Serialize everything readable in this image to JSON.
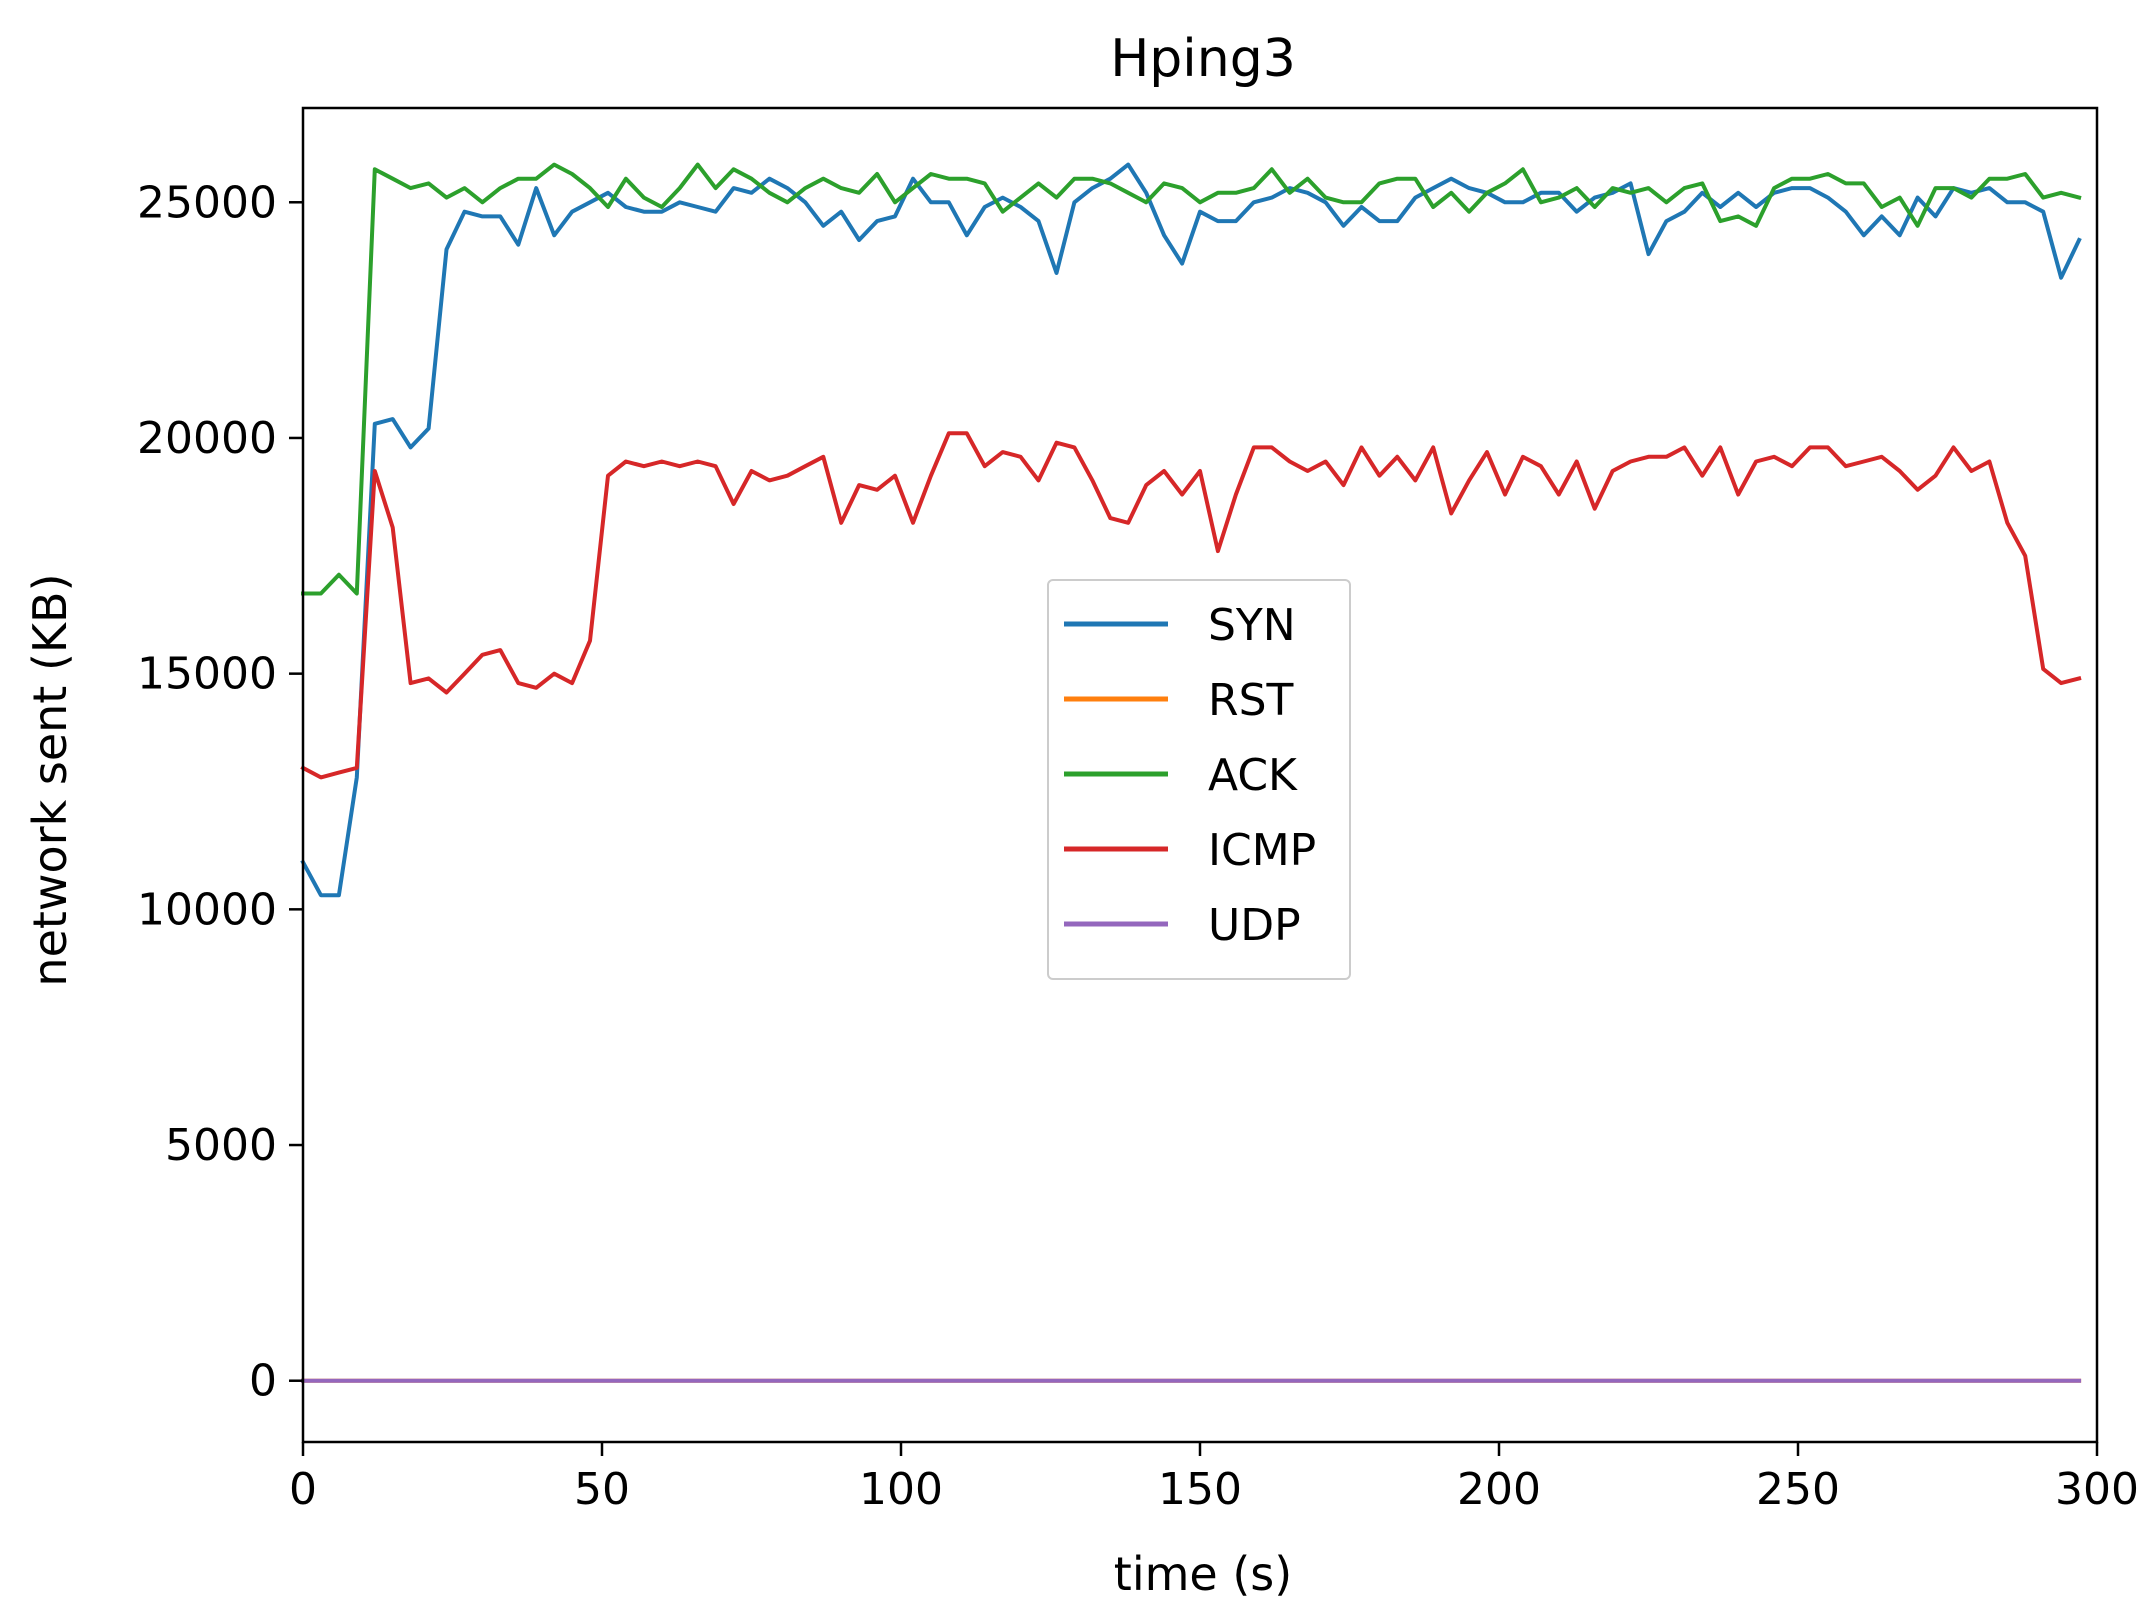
{
  "chart_data": {
    "type": "line",
    "title": "Hping3",
    "xlabel": "time (s)",
    "ylabel": "network sent (KB)",
    "xlim": [
      0,
      300
    ],
    "ylim": [
      -1300,
      27000
    ],
    "xticks": [
      0,
      50,
      100,
      150,
      200,
      250,
      300
    ],
    "yticks": [
      0,
      5000,
      10000,
      15000,
      20000,
      25000
    ],
    "grid": false,
    "legend_position": "center",
    "x": [
      0,
      3,
      6,
      9,
      12,
      15,
      18,
      21,
      24,
      27,
      30,
      33,
      36,
      39,
      42,
      45,
      48,
      51,
      54,
      57,
      60,
      63,
      66,
      69,
      72,
      75,
      78,
      81,
      84,
      87,
      90,
      93,
      96,
      99,
      102,
      105,
      108,
      111,
      114,
      117,
      120,
      123,
      126,
      129,
      132,
      135,
      138,
      141,
      144,
      147,
      150,
      153,
      156,
      159,
      162,
      165,
      168,
      171,
      174,
      177,
      180,
      183,
      186,
      189,
      192,
      195,
      198,
      201,
      204,
      207,
      210,
      213,
      216,
      219,
      222,
      225,
      228,
      231,
      234,
      237,
      240,
      243,
      246,
      249,
      252,
      255,
      258,
      261,
      264,
      267,
      270,
      273,
      276,
      279,
      282,
      285,
      288,
      291,
      294,
      297
    ],
    "series": [
      {
        "name": "SYN",
        "color": "#1f77b4",
        "values": [
          11000,
          10300,
          10300,
          12800,
          20300,
          20400,
          19800,
          20200,
          24000,
          24800,
          24700,
          24700,
          24100,
          25300,
          24300,
          24800,
          25000,
          25200,
          24900,
          24800,
          24800,
          25000,
          24900,
          24800,
          25300,
          25200,
          25500,
          25300,
          25000,
          24500,
          24800,
          24200,
          24600,
          24700,
          25500,
          25000,
          25000,
          24300,
          24900,
          25100,
          24900,
          24600,
          23500,
          25000,
          25300,
          25500,
          25800,
          25200,
          24300,
          23700,
          24800,
          24600,
          24600,
          25000,
          25100,
          25300,
          25200,
          25000,
          24500,
          24900,
          24600,
          24600,
          25100,
          25300,
          25500,
          25300,
          25200,
          25000,
          25000,
          25200,
          25200,
          24800,
          25100,
          25200,
          25400,
          23900,
          24600,
          24800,
          25200,
          24900,
          25200,
          24900,
          25200,
          25300,
          25300,
          25100,
          24800,
          24300,
          24700,
          24300,
          25100,
          24700,
          25300,
          25200,
          25300,
          25000,
          25000,
          24800,
          23400,
          24200
        ]
      },
      {
        "name": "RST",
        "color": "#ff7f0e",
        "values": [
          0,
          0,
          0,
          0,
          0,
          0,
          0,
          0,
          0,
          0,
          0,
          0,
          0,
          0,
          0,
          0,
          0,
          0,
          0,
          0,
          0,
          0,
          0,
          0,
          0,
          0,
          0,
          0,
          0,
          0,
          0,
          0,
          0,
          0,
          0,
          0,
          0,
          0,
          0,
          0,
          0,
          0,
          0,
          0,
          0,
          0,
          0,
          0,
          0,
          0,
          0,
          0,
          0,
          0,
          0,
          0,
          0,
          0,
          0,
          0,
          0,
          0,
          0,
          0,
          0,
          0,
          0,
          0,
          0,
          0,
          0,
          0,
          0,
          0,
          0,
          0,
          0,
          0,
          0,
          0,
          0,
          0,
          0,
          0,
          0,
          0,
          0,
          0,
          0,
          0,
          0,
          0,
          0,
          0,
          0,
          0,
          0,
          0,
          0,
          0
        ]
      },
      {
        "name": "ACK",
        "color": "#2ca02c",
        "values": [
          16700,
          16700,
          17100,
          16700,
          25700,
          25500,
          25300,
          25400,
          25100,
          25300,
          25000,
          25300,
          25500,
          25500,
          25800,
          25600,
          25300,
          24900,
          25500,
          25100,
          24900,
          25300,
          25800,
          25300,
          25700,
          25500,
          25200,
          25000,
          25300,
          25500,
          25300,
          25200,
          25600,
          25000,
          25300,
          25600,
          25500,
          25500,
          25400,
          24800,
          25100,
          25400,
          25100,
          25500,
          25500,
          25400,
          25200,
          25000,
          25400,
          25300,
          25000,
          25200,
          25200,
          25300,
          25700,
          25200,
          25500,
          25100,
          25000,
          25000,
          25400,
          25500,
          25500,
          24900,
          25200,
          24800,
          25200,
          25400,
          25700,
          25000,
          25100,
          25300,
          24900,
          25300,
          25200,
          25300,
          25000,
          25300,
          25400,
          24600,
          24700,
          24500,
          25300,
          25500,
          25500,
          25600,
          25400,
          25400,
          24900,
          25100,
          24500,
          25300,
          25300,
          25100,
          25500,
          25500,
          25600,
          25100,
          25200,
          25100
        ]
      },
      {
        "name": "ICMP",
        "color": "#d62728",
        "values": [
          13000,
          12800,
          12900,
          13000,
          19300,
          18100,
          14800,
          14900,
          14600,
          15000,
          15400,
          15500,
          14800,
          14700,
          15000,
          14800,
          15700,
          19200,
          19500,
          19400,
          19500,
          19400,
          19500,
          19400,
          18600,
          19300,
          19100,
          19200,
          19400,
          19600,
          18200,
          19000,
          18900,
          19200,
          18200,
          19200,
          20100,
          20100,
          19400,
          19700,
          19600,
          19100,
          19900,
          19800,
          19100,
          18300,
          18200,
          19000,
          19300,
          18800,
          19300,
          17600,
          18800,
          19800,
          19800,
          19500,
          19300,
          19500,
          19000,
          19800,
          19200,
          19600,
          19100,
          19800,
          18400,
          19100,
          19700,
          18800,
          19600,
          19400,
          18800,
          19500,
          18500,
          19300,
          19500,
          19600,
          19600,
          19800,
          19200,
          19800,
          18800,
          19500,
          19600,
          19400,
          19800,
          19800,
          19400,
          19500,
          19600,
          19300,
          18900,
          19200,
          19800,
          19300,
          19500,
          18200,
          17500,
          15100,
          14800,
          14900
        ]
      },
      {
        "name": "UDP",
        "color": "#9467bd",
        "values": [
          0,
          0,
          0,
          0,
          0,
          0,
          0,
          0,
          0,
          0,
          0,
          0,
          0,
          0,
          0,
          0,
          0,
          0,
          0,
          0,
          0,
          0,
          0,
          0,
          0,
          0,
          0,
          0,
          0,
          0,
          0,
          0,
          0,
          0,
          0,
          0,
          0,
          0,
          0,
          0,
          0,
          0,
          0,
          0,
          0,
          0,
          0,
          0,
          0,
          0,
          0,
          0,
          0,
          0,
          0,
          0,
          0,
          0,
          0,
          0,
          0,
          0,
          0,
          0,
          0,
          0,
          0,
          0,
          0,
          0,
          0,
          0,
          0,
          0,
          0,
          0,
          0,
          0,
          0,
          0,
          0,
          0,
          0,
          0,
          0,
          0,
          0,
          0,
          0,
          0,
          0,
          0,
          0,
          0,
          0,
          0,
          0,
          0,
          0,
          0
        ]
      }
    ]
  }
}
